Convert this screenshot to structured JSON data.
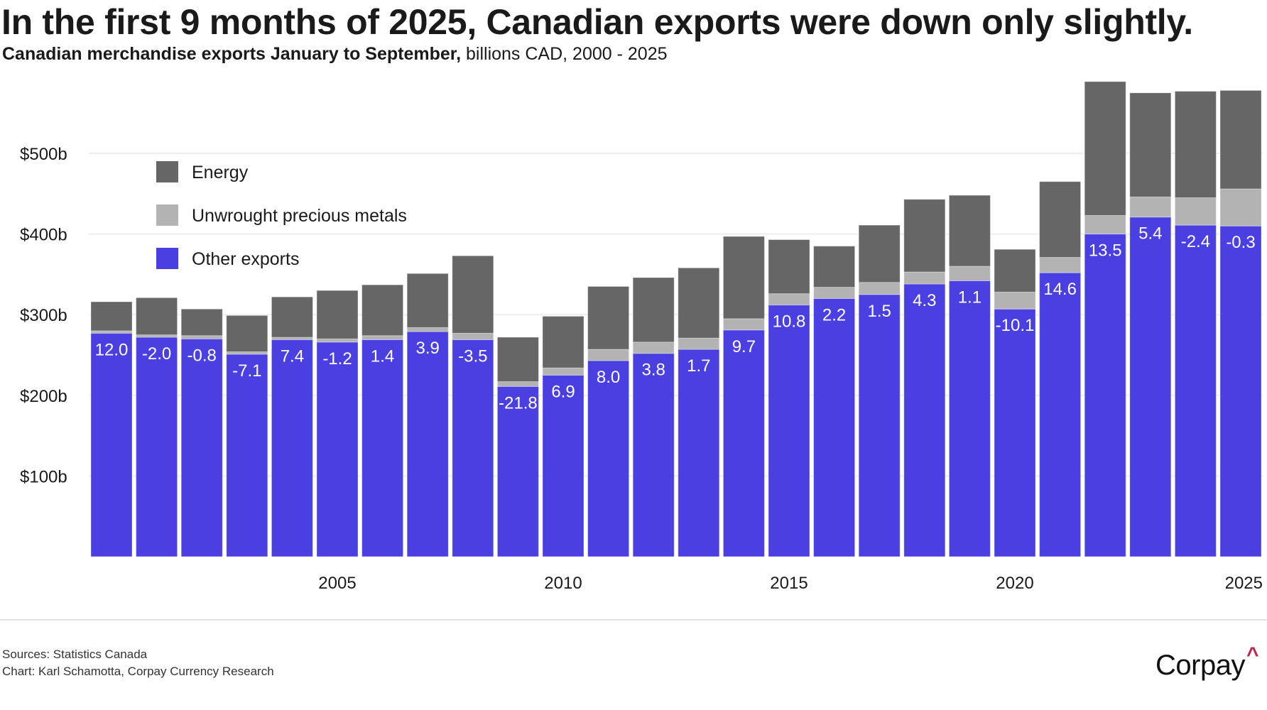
{
  "header": {
    "title": "In the first 9 months of 2025, Canadian exports were down only slightly.",
    "subtitle_strong": "Canadian merchandise exports January to September,",
    "subtitle_rest": " billions CAD, 2000 - 2025"
  },
  "footer": {
    "sources": "Sources: Statistics Canada",
    "credit": "Chart: Karl Schamotta, Corpay Currency Research",
    "logo_text": "Corpay",
    "logo_mark": "^"
  },
  "colors": {
    "energy": "#666666",
    "metals": "#b3b3b3",
    "other": "#4a3fe0",
    "gridline": "#eeeeee",
    "logo_accent": "#c4254c"
  },
  "chart_data": {
    "type": "bar",
    "stacked": true,
    "title": "In the first 9 months of 2025, Canadian exports were down only slightly.",
    "subtitle": "Canadian merchandise exports January to September, billions CAD, 2000 - 2025",
    "xlabel": "",
    "ylabel": "",
    "ylim": [
      0,
      590
    ],
    "grid": true,
    "legend_position": "top-left",
    "y_ticks": [
      100,
      200,
      300,
      400,
      500
    ],
    "y_tick_labels": [
      "$100b",
      "$200b",
      "$300b",
      "$400b",
      "$500b"
    ],
    "x_tick_labels": [
      "2005",
      "2010",
      "2015",
      "2020",
      "2025"
    ],
    "categories": [
      "2000",
      "2001",
      "2002",
      "2003",
      "2004",
      "2005",
      "2006",
      "2007",
      "2008",
      "2009",
      "2010",
      "2011",
      "2012",
      "2013",
      "2014",
      "2015",
      "2016",
      "2017",
      "2018",
      "2019",
      "2020",
      "2021",
      "2022",
      "2023",
      "2024",
      "2025"
    ],
    "series": [
      {
        "name": "Other exports",
        "color_key": "other",
        "values": [
          277,
          272,
          270,
          251,
          269,
          266,
          269,
          279,
          269,
          211,
          225,
          243,
          252,
          257,
          281,
          312,
          320,
          325,
          338,
          342,
          307,
          352,
          400,
          421,
          411,
          410
        ]
      },
      {
        "name": "Unwrought precious metals",
        "color_key": "metals",
        "values": [
          3,
          3,
          4,
          3,
          3,
          4,
          5,
          5,
          8,
          6,
          9,
          14,
          14,
          14,
          14,
          14,
          14,
          15,
          15,
          18,
          21,
          19,
          23,
          25,
          34,
          46
        ]
      },
      {
        "name": "Energy",
        "color_key": "energy",
        "values": [
          36,
          46,
          33,
          45,
          50,
          60,
          63,
          67,
          96,
          55,
          64,
          78,
          80,
          87,
          102,
          67,
          51,
          71,
          90,
          88,
          53,
          94,
          166,
          129,
          132,
          122
        ]
      }
    ],
    "data_labels": {
      "description": "Year-over-year % change in other exports",
      "values": [
        "12.0",
        "-2.0",
        "-0.8",
        "-7.1",
        "7.4",
        "-1.2",
        "1.4",
        "3.9",
        "-3.5",
        "-21.8",
        "6.9",
        "8.0",
        "3.8",
        "1.7",
        "9.7",
        "10.8",
        "2.2",
        "1.5",
        "4.3",
        "1.1",
        "-10.1",
        "14.6",
        "13.5",
        "5.4",
        "-2.4",
        "-0.3"
      ]
    },
    "legend": [
      {
        "label": "Energy",
        "color_key": "energy"
      },
      {
        "label": "Unwrought precious metals",
        "color_key": "metals"
      },
      {
        "label": "Other exports",
        "color_key": "other"
      }
    ]
  }
}
